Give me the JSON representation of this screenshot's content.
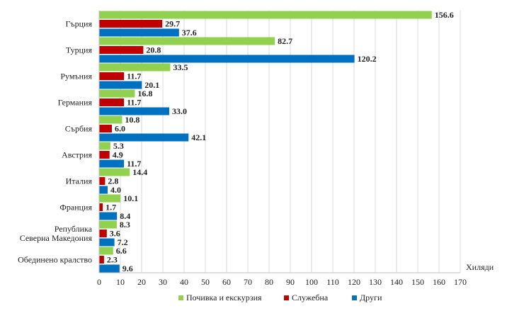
{
  "chart_data": {
    "type": "bar",
    "orientation": "horizontal",
    "title": "",
    "xlabel": "Хиляди",
    "ylabel": "",
    "xlim": [
      0,
      170
    ],
    "xticks": [
      0,
      10,
      20,
      30,
      40,
      50,
      60,
      70,
      80,
      90,
      100,
      110,
      120,
      130,
      140,
      150,
      160,
      170
    ],
    "grid": true,
    "legend_position": "bottom",
    "categories": [
      [
        "Гърция"
      ],
      [
        "Турция"
      ],
      [
        "Румъния"
      ],
      [
        "Германия"
      ],
      [
        "Сърбия"
      ],
      [
        "Австрия"
      ],
      [
        "Италия"
      ],
      [
        "Франция"
      ],
      [
        "Република",
        "Северна Македония"
      ],
      [
        "Обединено кралство"
      ]
    ],
    "series": [
      {
        "name": "Почивка и екскурзия",
        "color": "#92D050",
        "values": [
          156.6,
          82.7,
          33.5,
          16.8,
          10.8,
          5.3,
          14.4,
          10.1,
          8.3,
          6.6
        ],
        "labels": [
          "156.6",
          "82.7",
          "33.5",
          "16.8",
          "10.8",
          "5.3",
          "14.4",
          "10.1",
          "8.3",
          "6.6"
        ]
      },
      {
        "name": "Служебна",
        "color": "#C00000",
        "values": [
          29.7,
          20.8,
          11.7,
          11.7,
          6.0,
          4.9,
          2.8,
          1.7,
          3.6,
          2.3
        ],
        "labels": [
          "29.7",
          "20.8",
          "11.7",
          "11.7",
          "6.0",
          "4.9",
          "2.8",
          "1.7",
          "3.6",
          "2.3"
        ]
      },
      {
        "name": "Други",
        "color": "#0070C0",
        "values": [
          37.6,
          120.2,
          20.1,
          33.0,
          42.1,
          11.7,
          4.0,
          8.4,
          7.2,
          9.6
        ],
        "labels": [
          "37.6",
          "120.2",
          "20.1",
          "33.0",
          "42.1",
          "11.7",
          "4.0",
          "8.4",
          "7.2",
          "9.6"
        ]
      }
    ]
  }
}
